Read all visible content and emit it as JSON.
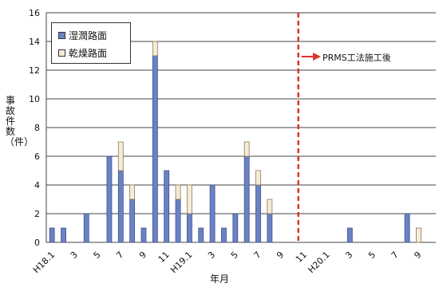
{
  "chart_data": {
    "type": "bar",
    "stacked": true,
    "ylabel": "事故件数（件）",
    "xlabel": "年月",
    "ylim": [
      0,
      16
    ],
    "yticks": [
      0,
      2,
      4,
      6,
      8,
      10,
      12,
      14,
      16
    ],
    "grid": true,
    "legend_position": "top-left",
    "annotation": "PRMS工法施工後",
    "boundary_after_index": 21,
    "tick_labels": [
      {
        "index": 0,
        "label": "H18.1"
      },
      {
        "index": 2,
        "label": "3"
      },
      {
        "index": 4,
        "label": "5"
      },
      {
        "index": 6,
        "label": "7"
      },
      {
        "index": 8,
        "label": "9"
      },
      {
        "index": 10,
        "label": "11"
      },
      {
        "index": 12,
        "label": "H19.1"
      },
      {
        "index": 14,
        "label": "3"
      },
      {
        "index": 16,
        "label": "5"
      },
      {
        "index": 18,
        "label": "7"
      },
      {
        "index": 20,
        "label": "9"
      },
      {
        "index": 22,
        "label": "11"
      },
      {
        "index": 24,
        "label": "H20.1"
      },
      {
        "index": 26,
        "label": "3"
      },
      {
        "index": 28,
        "label": "5"
      },
      {
        "index": 30,
        "label": "7"
      },
      {
        "index": 32,
        "label": "9"
      }
    ],
    "series": [
      {
        "name": "湿潤路面",
        "color": "#6a82c4",
        "values": [
          1,
          1,
          0,
          2,
          0,
          6,
          5,
          3,
          1,
          13,
          5,
          3,
          2,
          1,
          4,
          1,
          2,
          6,
          4,
          2,
          0,
          0,
          0,
          0,
          0,
          0,
          1,
          0,
          0,
          0,
          0,
          2,
          0,
          0
        ]
      },
      {
        "name": "乾燥路面",
        "color": "#f6ebd6",
        "values": [
          0,
          0,
          0,
          0,
          0,
          0,
          2,
          1,
          0,
          1,
          0,
          1,
          2,
          0,
          0,
          0,
          0,
          1,
          1,
          1,
          0,
          0,
          0,
          0,
          0,
          0,
          0,
          0,
          0,
          0,
          0,
          0,
          1,
          0
        ]
      }
    ],
    "categories_count": 34
  }
}
